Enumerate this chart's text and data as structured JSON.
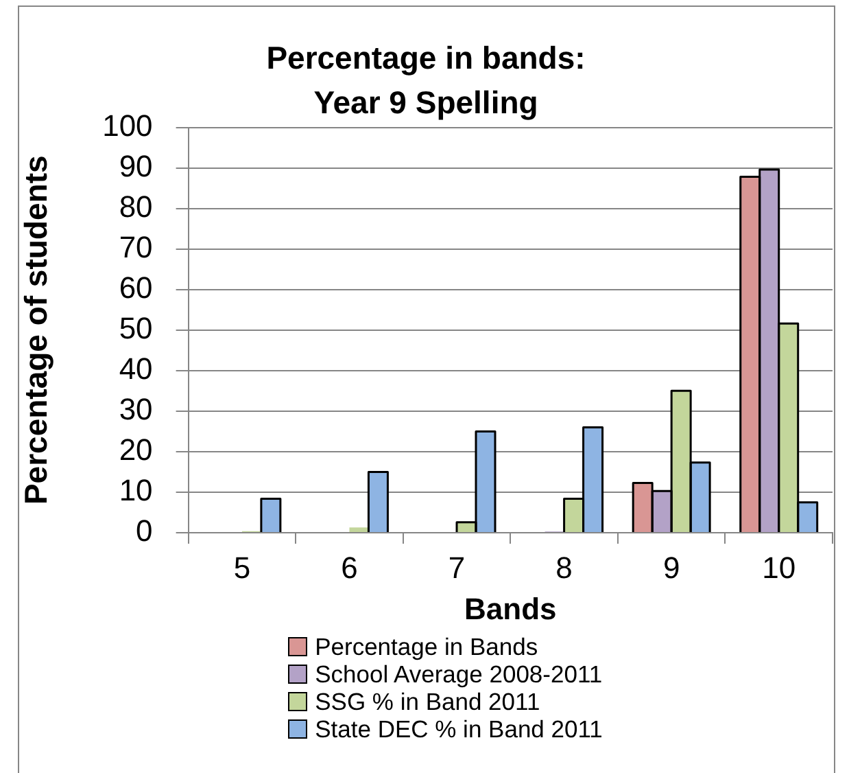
{
  "chart_data": {
    "type": "bar",
    "title": "Percentage in bands:\nYear 9 Spelling",
    "xlabel": "Bands",
    "ylabel": "Percentage of students",
    "categories": [
      "5",
      "6",
      "7",
      "8",
      "9",
      "10"
    ],
    "series": [
      {
        "name": "Percentage in Bands",
        "color": "#d99694",
        "values": [
          0,
          0,
          0,
          0,
          12.3,
          87.8
        ]
      },
      {
        "name": "School Average 2008-2011",
        "color": "#b3a2c7",
        "values": [
          0,
          0,
          0,
          0.3,
          10.3,
          89.6
        ]
      },
      {
        "name": "SSG % in Band 2011",
        "color": "#c3d69b",
        "values": [
          0.4,
          1.3,
          2.6,
          8.4,
          35,
          51.6
        ]
      },
      {
        "name": "State DEC % in Band 2011",
        "color": "#8eb4e3",
        "values": [
          8.4,
          15,
          25,
          26,
          17.3,
          7.5
        ]
      }
    ],
    "ylim": [
      0,
      100
    ],
    "yticks": [
      0,
      10,
      20,
      30,
      40,
      50,
      60,
      70,
      80,
      90,
      100
    ],
    "grid": "y",
    "legend": "bottom"
  }
}
